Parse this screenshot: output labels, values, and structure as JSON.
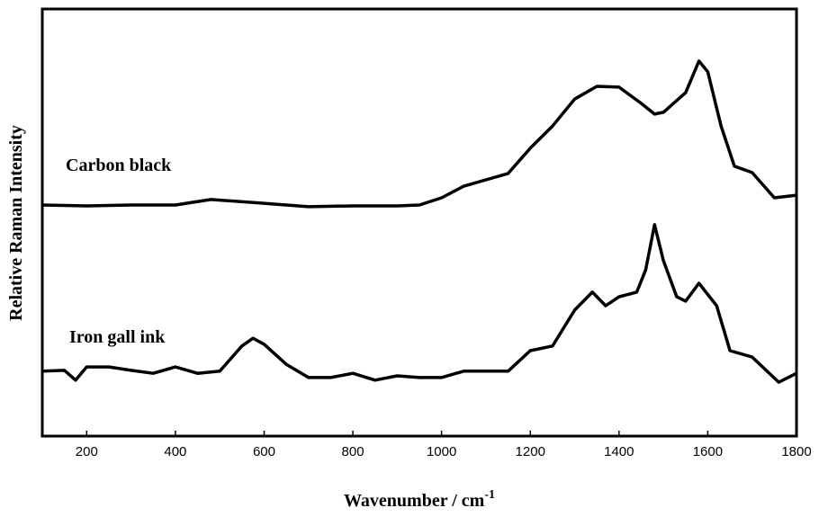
{
  "chart_data": {
    "type": "line",
    "ylabel": "Relative Raman Intensity",
    "xlabel": {
      "text": "Wavenumber / cm",
      "superscript": "-1"
    },
    "xlim": [
      100,
      1800
    ],
    "xticks": [
      200,
      400,
      600,
      800,
      1000,
      1200,
      1400,
      1600,
      1800
    ],
    "ylim": [
      0,
      100
    ],
    "yticks": [],
    "series": [
      {
        "name": "Carbon black",
        "color": "#000000",
        "x": [
          100,
          200,
          300,
          400,
          480,
          600,
          700,
          800,
          900,
          950,
          1000,
          1050,
          1100,
          1150,
          1200,
          1250,
          1300,
          1350,
          1400,
          1450,
          1480,
          1500,
          1550,
          1580,
          1600,
          1630,
          1660,
          1700,
          1750,
          1800
        ],
        "values": [
          54.1,
          53.9,
          54.1,
          54.1,
          55.4,
          54.5,
          53.7,
          53.9,
          53.9,
          54.1,
          55.8,
          58.5,
          60.0,
          61.5,
          67.4,
          72.6,
          78.9,
          81.9,
          81.7,
          77.9,
          75.4,
          75.8,
          80.4,
          87.8,
          85.3,
          72.6,
          63.2,
          61.7,
          55.8,
          56.4
        ]
      },
      {
        "name": "Iron gall ink",
        "color": "#000000",
        "x": [
          100,
          150,
          175,
          200,
          250,
          300,
          350,
          400,
          450,
          500,
          550,
          575,
          600,
          650,
          700,
          750,
          800,
          850,
          900,
          950,
          1000,
          1050,
          1100,
          1150,
          1200,
          1250,
          1300,
          1340,
          1370,
          1400,
          1440,
          1460,
          1480,
          1500,
          1530,
          1550,
          1580,
          1620,
          1650,
          1700,
          1760,
          1800
        ],
        "values": [
          15.2,
          15.4,
          13.1,
          16.2,
          16.2,
          15.4,
          14.7,
          16.2,
          14.7,
          15.2,
          21.1,
          22.9,
          21.5,
          16.8,
          13.7,
          13.7,
          14.7,
          13.1,
          14.1,
          13.7,
          13.7,
          15.2,
          15.2,
          15.2,
          20.0,
          21.1,
          29.5,
          33.7,
          30.5,
          32.6,
          33.7,
          38.9,
          49.5,
          41.1,
          32.6,
          31.6,
          35.8,
          30.5,
          20.0,
          18.5,
          12.6,
          14.7
        ]
      }
    ]
  }
}
